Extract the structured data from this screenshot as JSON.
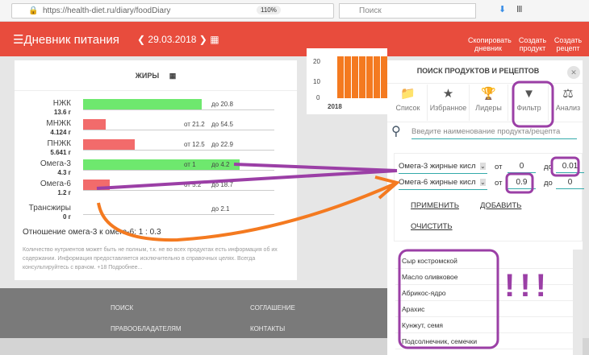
{
  "browser": {
    "url": "https://health-diet.ru/diary/foodDiary",
    "zoom": "110%",
    "search_placeholder": "Поиск"
  },
  "header": {
    "title": "Дневник питания",
    "date": "29.03.2018",
    "buttons": [
      {
        "label1": "Скопировать",
        "label2": "дневник"
      },
      {
        "label1": "Создать",
        "label2": "продукт"
      },
      {
        "label1": "Создать",
        "label2": "рецепт"
      }
    ]
  },
  "fats": {
    "title": "ЖИРЫ",
    "rows": [
      {
        "name": "НЖК",
        "amount": "13.6 г",
        "from": "",
        "to": "до 20.8",
        "color": "#6ee86e",
        "fill": 0.62
      },
      {
        "name": "МНЖК",
        "amount": "4.124 г",
        "from": "от 21.2",
        "to": "до 54.5",
        "color": "#f26b6b",
        "fill": 0.12
      },
      {
        "name": "ПНЖК",
        "amount": "5.641 г",
        "from": "от 12.5",
        "to": "до 22.9",
        "color": "#f26b6b",
        "fill": 0.27
      },
      {
        "name": "Омега-3",
        "amount": "4.3 г",
        "from": "от 1",
        "to": "до 4.2",
        "color": "#6ee86e",
        "fill": 0.82
      },
      {
        "name": "Омега-6",
        "amount": "1.2 г",
        "from": "от 5.2",
        "to": "до 18.7",
        "color": "#f26b6b",
        "fill": 0.14
      },
      {
        "name": "Трансжиры",
        "amount": "0 г",
        "from": "",
        "to": "до 2.1",
        "color": "#6ee86e",
        "fill": 0
      }
    ],
    "ratio": "Отношение омега-3 к омега-6: 1 : 0.3",
    "note": "Количество нутриентов может быть не полным, т.к. не во всех продуктах есть информация об их содержании. Информация предоставляется исключительно в справочных целях. Всегда консультируйтесь с врачом. +18 Подробнее..."
  },
  "bg_chart": {
    "yticks": [
      "20",
      "10",
      "0"
    ],
    "xlabel": "2018",
    "color": "#f47a20"
  },
  "footer": {
    "links": [
      "ПОИСК",
      "СОГЛАШЕНИЕ",
      "ПРАВООБЛАДАТЕЛЯМ",
      "КОНТАКТЫ"
    ]
  },
  "panel": {
    "title": "ПОИСК ПРОДУКТОВ И РЕЦЕПТОВ",
    "close": "✕",
    "tabs": [
      {
        "label": "Список",
        "icon": "📁"
      },
      {
        "label": "Избранное",
        "icon": "★"
      },
      {
        "label": "Лидеры",
        "icon": "🏆"
      },
      {
        "label": "Фильтр",
        "icon": "▼"
      },
      {
        "label": "Анализ",
        "icon": "⚖"
      }
    ],
    "search_placeholder": "Введите наименование продукта/рецепта",
    "filters": [
      {
        "nutrient": "Омега-3 жирные кисл",
        "from_label": "от",
        "from": "0",
        "to_label": "до",
        "to": "0.01"
      },
      {
        "nutrient": "Омега-6 жирные кисл",
        "from_label": "от",
        "from": "0.9",
        "to_label": "до",
        "to": "0"
      }
    ],
    "apply": "ПРИМЕНИТЬ",
    "add": "ДОБАВИТЬ",
    "clear": "ОЧИСТИТЬ",
    "results": [
      "Сыр костромской",
      "Масло оливковое",
      "Абрикос-ядро",
      "Арахис",
      "Кунжут, семя",
      "Подсолнечник, семечки"
    ]
  },
  "annotation": {
    "text": "!!!",
    "purple": "#9b3fa6",
    "orange": "#f47a20"
  }
}
